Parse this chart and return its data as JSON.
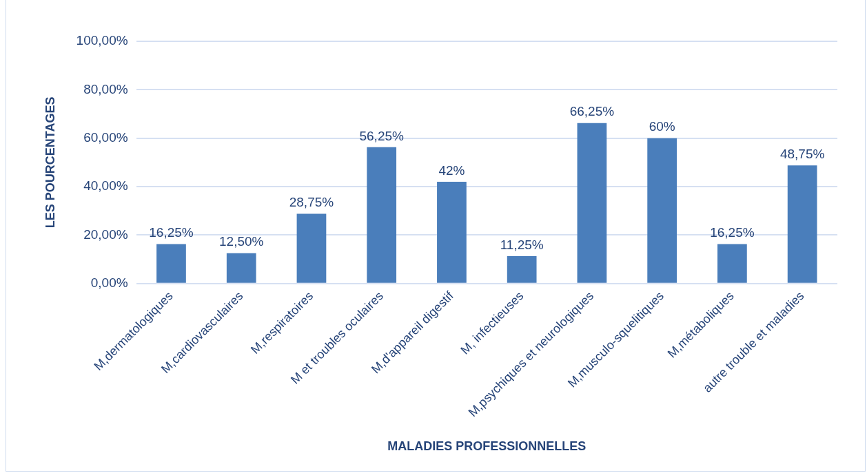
{
  "chart_data": {
    "type": "bar",
    "xlabel": "MALADIES PROFESSIONNELLES",
    "ylabel": "LES POURCENTAGES",
    "categories": [
      "M,dermatologiques",
      "M,cardiovasculaires",
      "M,respiratoires",
      "M et troubles oculaires",
      "M,d'appareil digestif",
      "M, infectieuses",
      "M,psychiques et neurologiques",
      "M,musculo-squelitiques",
      "M,métaboliques",
      "autre trouble et maladies"
    ],
    "values": [
      16.25,
      12.5,
      28.75,
      56.25,
      42,
      11.25,
      66.25,
      60,
      16.25,
      48.75
    ],
    "value_labels": [
      "16,25%",
      "12,50%",
      "28,75%",
      "56,25%",
      "42%",
      "11,25%",
      "66,25%",
      "60%",
      "16,25%",
      "48,75%"
    ],
    "color": "#4a7ebb",
    "ylim": [
      0,
      100
    ],
    "yticks": [
      {
        "value": 0,
        "label": "0,00%"
      },
      {
        "value": 20,
        "label": "20,00%"
      },
      {
        "value": 40,
        "label": "40,00%"
      },
      {
        "value": 60,
        "label": "60,00%"
      },
      {
        "value": 80,
        "label": "80,00%"
      },
      {
        "value": 100,
        "label": "100,00%"
      }
    ],
    "grid": "y"
  }
}
